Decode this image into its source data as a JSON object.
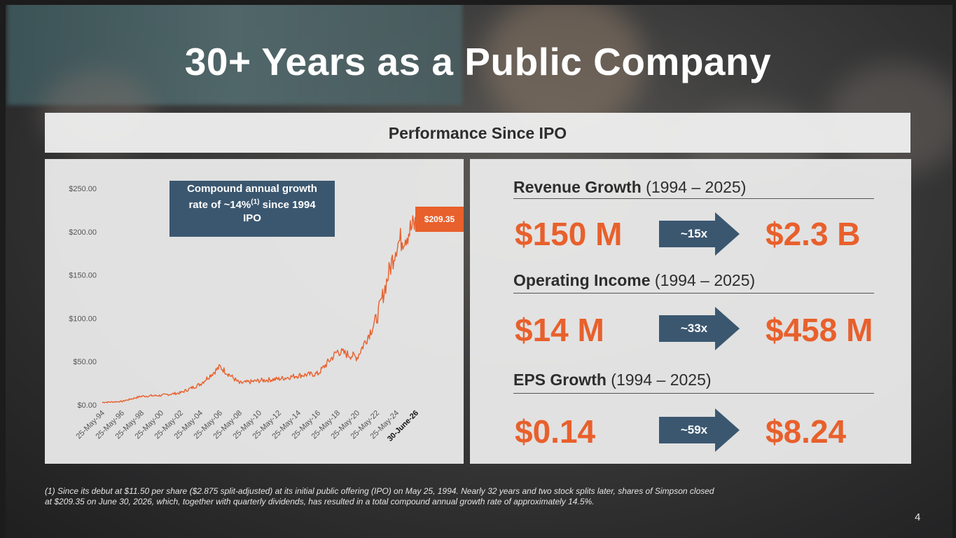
{
  "slide": {
    "title": "30+ Years as a Public Company",
    "section_header": "Performance Since IPO",
    "page_number": "4"
  },
  "chart_callouts": {
    "cagr_line1": "Compound annual growth",
    "cagr_line2_pre": "rate of ~14%",
    "cagr_sup": "(1)",
    "cagr_line2_post": " since 1994",
    "cagr_line3": "IPO",
    "latest_price": "$209.35"
  },
  "chart_data": {
    "type": "line",
    "series": [
      {
        "color": "#e8602c",
        "x": [
          "25-May-94",
          "25-May-96",
          "25-May-98",
          "25-May-00",
          "25-May-02",
          "25-May-04",
          "25-May-06",
          "25-May-08",
          "25-May-10",
          "25-May-12",
          "25-May-14",
          "25-May-16",
          "25-May-18",
          "25-May-20",
          "25-May-22",
          "25-May-24",
          "30-June-26"
        ],
        "values": [
          2.9,
          4,
          10,
          11,
          14,
          24,
          44,
          25,
          28,
          30,
          34,
          36,
          62,
          55,
          100,
          185,
          209.35
        ]
      }
    ],
    "x_tick_labels": [
      "25-May-94",
      "25-May-96",
      "25-May-98",
      "25-May-00",
      "25-May-02",
      "25-May-04",
      "25-May-06",
      "25-May-08",
      "25-May-10",
      "25-May-12",
      "25-May-14",
      "25-May-16",
      "25-May-18",
      "25-May-20",
      "25-May-22",
      "25-May-24",
      "30-June-26"
    ],
    "y_tick_labels": [
      "$0.00",
      "$50.00",
      "$100.00",
      "$150.00",
      "$200.00",
      "$250.00"
    ],
    "y_ticks": [
      0,
      50,
      100,
      150,
      200,
      250
    ],
    "ylim": [
      0,
      250
    ],
    "grid": false,
    "title": "",
    "xlabel": "",
    "ylabel": ""
  },
  "stats": [
    {
      "label_bold": "Revenue Growth",
      "label_rest": " (1994 – 2025)",
      "from": "$150 M",
      "multiple": "~15x",
      "to": "$2.3 B"
    },
    {
      "label_bold": "Operating Income",
      "label_rest": " (1994 – 2025)",
      "from": "$14 M",
      "multiple": "~33x",
      "to": "$458 M"
    },
    {
      "label_bold": "EPS Growth",
      "label_rest": " (1994 – 2025)",
      "from": "$0.14",
      "multiple": "~59x",
      "to": "$8.24"
    }
  ],
  "footnote": {
    "line1": "(1) Since its debut at $11.50 per share ($2.875 split-adjusted) at its initial public offering (IPO) on May 25, 1994. Nearly 32 years and two stock splits later, shares of Simpson closed",
    "line2": "at $209.35 on June 30, 2026, which, together with quarterly dividends, has resulted in a total compound annual growth rate of approximately 14.5%."
  },
  "colors": {
    "accent_orange": "#e8602c",
    "navy": "#3b5770",
    "panel": "#ececec"
  }
}
